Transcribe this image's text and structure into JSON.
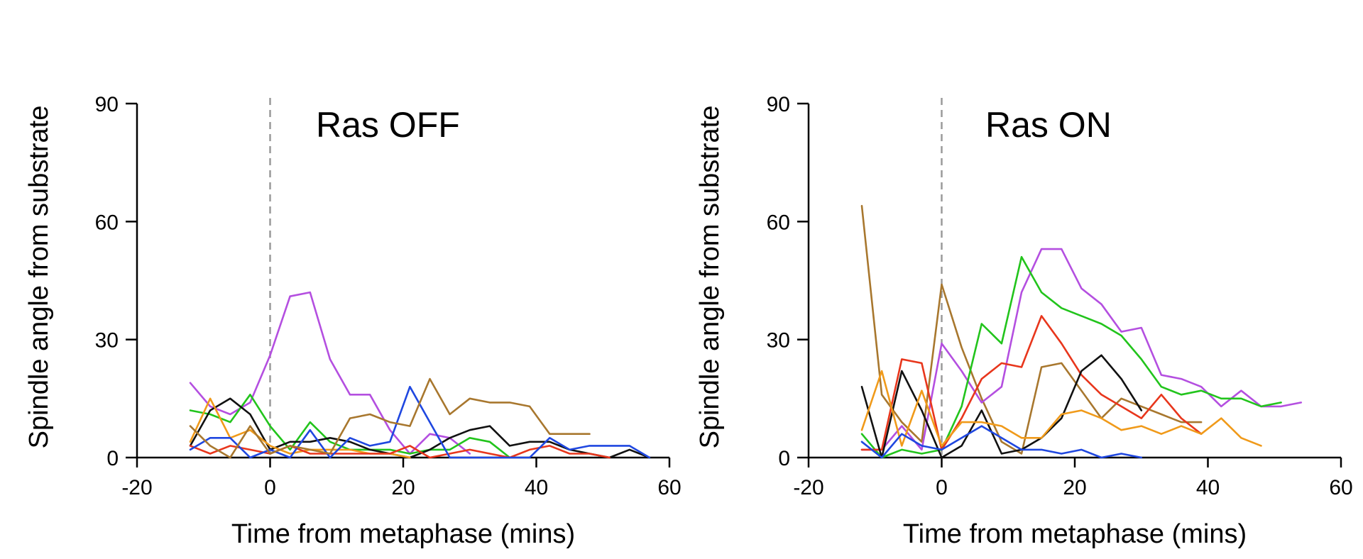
{
  "chart_data": [
    {
      "type": "line",
      "title": "Ras OFF",
      "xlabel": "Time from metaphase (mins)",
      "ylabel": "Spindle angle from substrate",
      "xlim": [
        -20,
        60
      ],
      "ylim": [
        0,
        90
      ],
      "xticks": [
        "-20",
        "0",
        "20",
        "40",
        "60"
      ],
      "yticks": [
        "0",
        "30",
        "60",
        "90"
      ],
      "reference_line_x": 0,
      "series": [
        {
          "name": "magenta",
          "color": "#b44fe0",
          "x": [
            -12,
            -9,
            -6,
            -3,
            0,
            3,
            6,
            9,
            12,
            15,
            18,
            21,
            24,
            27,
            30
          ],
          "y": [
            19,
            13,
            11,
            14,
            26,
            41,
            42,
            25,
            16,
            16,
            7,
            1,
            6,
            5,
            1
          ]
        },
        {
          "name": "green",
          "color": "#22c41c",
          "x": [
            -12,
            -9,
            -6,
            -3,
            0,
            3,
            6,
            9,
            12,
            15,
            18,
            21,
            24,
            27,
            30,
            33,
            36
          ],
          "y": [
            12,
            11,
            9,
            16,
            8,
            2,
            9,
            4,
            2,
            2,
            2,
            1,
            2,
            2,
            5,
            4,
            0
          ]
        },
        {
          "name": "black",
          "color": "#111111",
          "x": [
            -12,
            -9,
            -6,
            -3,
            0,
            3,
            6,
            9,
            12,
            15,
            18,
            21,
            24,
            27,
            30,
            33,
            36,
            39,
            42,
            45,
            48,
            51,
            54,
            57
          ],
          "y": [
            3,
            12,
            15,
            11,
            2,
            4,
            4,
            5,
            4,
            2,
            1,
            0,
            2,
            5,
            7,
            8,
            3,
            4,
            4,
            2,
            1,
            0,
            2,
            0
          ]
        },
        {
          "name": "orange",
          "color": "#f09a1a",
          "x": [
            -12,
            -9,
            -6,
            -3,
            0,
            3,
            6,
            9,
            12,
            15,
            18,
            21
          ],
          "y": [
            4,
            15,
            5,
            7,
            3,
            1,
            2,
            2,
            2,
            1,
            1,
            0
          ]
        },
        {
          "name": "red",
          "color": "#e8361c",
          "x": [
            -12,
            -9,
            -6,
            -3,
            0,
            3,
            6,
            9,
            12,
            15,
            18,
            21,
            24,
            27,
            30,
            33,
            36,
            39,
            42,
            45,
            48,
            51
          ],
          "y": [
            3,
            1,
            3,
            2,
            1,
            3,
            1,
            1,
            1,
            1,
            1,
            3,
            0,
            1,
            2,
            1,
            0,
            2,
            3,
            1,
            1,
            0
          ]
        },
        {
          "name": "blue",
          "color": "#1f47e0",
          "x": [
            -12,
            -9,
            -6,
            -3,
            0,
            3,
            6,
            9,
            12,
            15,
            18,
            21,
            24,
            27,
            30,
            33,
            36,
            39,
            42,
            45,
            48,
            51,
            54,
            57
          ],
          "y": [
            2,
            5,
            5,
            0,
            2,
            0,
            7,
            0,
            5,
            3,
            4,
            18,
            9,
            0,
            0,
            0,
            0,
            0,
            5,
            2,
            3,
            3,
            3,
            0
          ]
        },
        {
          "name": "brown",
          "color": "#a8772e",
          "x": [
            -12,
            -9,
            -6,
            -3,
            0,
            3,
            6,
            9,
            12,
            15,
            18,
            21,
            24,
            27,
            30,
            33,
            36,
            39,
            42,
            45,
            48
          ],
          "y": [
            8,
            3,
            0,
            8,
            1,
            3,
            2,
            1,
            10,
            11,
            9,
            8,
            20,
            11,
            15,
            14,
            14,
            13,
            6,
            6,
            6
          ]
        }
      ]
    },
    {
      "type": "line",
      "title": "Ras ON",
      "xlabel": "Time from metaphase (mins)",
      "ylabel": "Spindle angle from substrate",
      "xlim": [
        -20,
        60
      ],
      "ylim": [
        0,
        90
      ],
      "xticks": [
        "-20",
        "0",
        "20",
        "40",
        "60"
      ],
      "yticks": [
        "0",
        "30",
        "60",
        "90"
      ],
      "reference_line_x": 0,
      "series": [
        {
          "name": "brown",
          "color": "#a8772e",
          "x": [
            -12,
            -9,
            -6,
            -3,
            0,
            3,
            6,
            9,
            12,
            15,
            18,
            21,
            24,
            27,
            30,
            33,
            36,
            39
          ],
          "y": [
            64,
            16,
            9,
            4,
            44,
            28,
            15,
            4,
            1,
            23,
            24,
            17,
            10,
            15,
            13,
            11,
            9,
            9
          ]
        },
        {
          "name": "magenta",
          "color": "#b44fe0",
          "x": [
            -12,
            -9,
            -6,
            -3,
            0,
            3,
            6,
            9,
            12,
            15,
            18,
            21,
            24,
            27,
            30,
            33,
            36,
            39,
            42,
            45,
            48,
            51,
            54
          ],
          "y": [
            2,
            2,
            8,
            2,
            29,
            22,
            14,
            18,
            42,
            53,
            53,
            43,
            39,
            32,
            33,
            21,
            20,
            18,
            13,
            17,
            13,
            13,
            14
          ]
        },
        {
          "name": "green",
          "color": "#22c41c",
          "x": [
            -12,
            -9,
            -6,
            -3,
            0,
            3,
            6,
            9,
            12,
            15,
            18,
            21,
            24,
            27,
            30,
            33,
            36,
            39,
            42,
            45,
            48,
            51
          ],
          "y": [
            6,
            0,
            2,
            1,
            2,
            13,
            34,
            29,
            51,
            42,
            38,
            36,
            34,
            31,
            25,
            18,
            16,
            17,
            15,
            15,
            13,
            14
          ]
        },
        {
          "name": "red",
          "color": "#e8361c",
          "x": [
            -12,
            -9,
            -6,
            -3,
            0,
            3,
            6,
            9,
            12,
            15,
            18,
            21,
            24,
            27,
            30,
            33,
            36,
            39
          ],
          "y": [
            2,
            2,
            25,
            24,
            2,
            10,
            20,
            24,
            23,
            36,
            29,
            21,
            16,
            13,
            10,
            16,
            10,
            6
          ]
        },
        {
          "name": "black",
          "color": "#111111",
          "x": [
            -12,
            -9,
            -6,
            -3,
            0,
            3,
            6,
            9,
            12,
            15,
            18,
            21,
            24,
            27,
            30
          ],
          "y": [
            18,
            0,
            22,
            12,
            0,
            3,
            12,
            1,
            2,
            5,
            10,
            22,
            26,
            20,
            12
          ]
        },
        {
          "name": "orange",
          "color": "#f09a1a",
          "x": [
            -12,
            -9,
            -6,
            -3,
            0,
            3,
            6,
            9,
            12,
            15,
            18,
            21,
            24,
            27,
            30,
            33,
            36,
            39,
            42,
            45,
            48
          ],
          "y": [
            7,
            22,
            3,
            17,
            3,
            9,
            9,
            8,
            5,
            5,
            11,
            12,
            10,
            7,
            8,
            6,
            8,
            6,
            10,
            5,
            3
          ]
        },
        {
          "name": "blue",
          "color": "#1f47e0",
          "x": [
            -12,
            -9,
            -6,
            -3,
            0,
            3,
            6,
            9,
            12,
            15,
            18,
            21,
            24,
            27,
            30
          ],
          "y": [
            4,
            0,
            6,
            3,
            2,
            5,
            8,
            5,
            2,
            2,
            1,
            2,
            0,
            1,
            0
          ]
        }
      ]
    }
  ]
}
